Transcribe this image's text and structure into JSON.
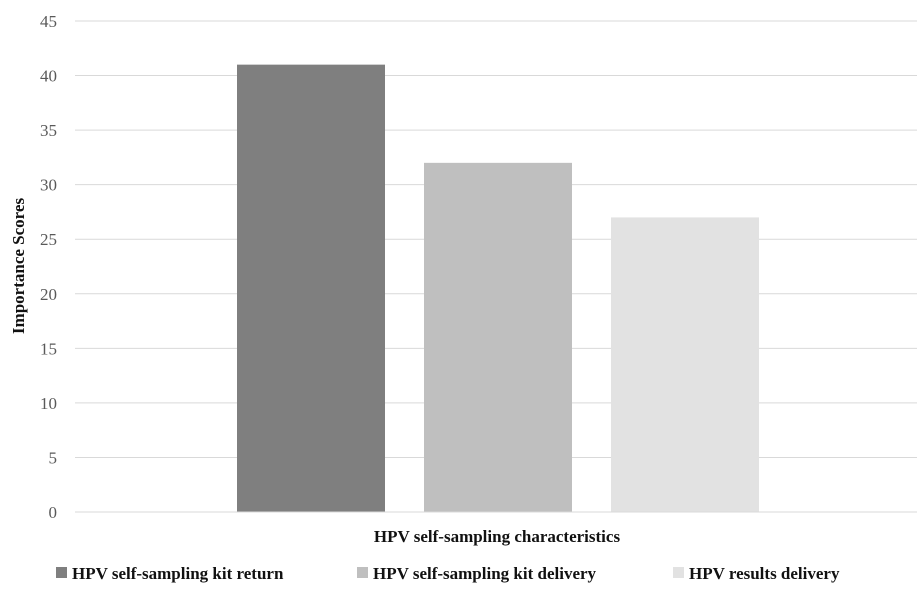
{
  "chart_data": {
    "type": "bar",
    "title": "",
    "xlabel": "HPV self-sampling characteristics",
    "ylabel": "Importance Scores",
    "ylim": [
      0,
      45
    ],
    "yticks": [
      0,
      5,
      10,
      15,
      20,
      25,
      30,
      35,
      40,
      45
    ],
    "grid": true,
    "legend_position": "bottom",
    "series": [
      {
        "name": "HPV self-sampling kit return",
        "values": [
          41
        ],
        "color": "#7f7f7f"
      },
      {
        "name": "HPV self-sampling kit delivery",
        "values": [
          32
        ],
        "color": "#bfbfbf"
      },
      {
        "name": "HPV results delivery",
        "values": [
          27
        ],
        "color": "#e2e2e2"
      }
    ]
  }
}
